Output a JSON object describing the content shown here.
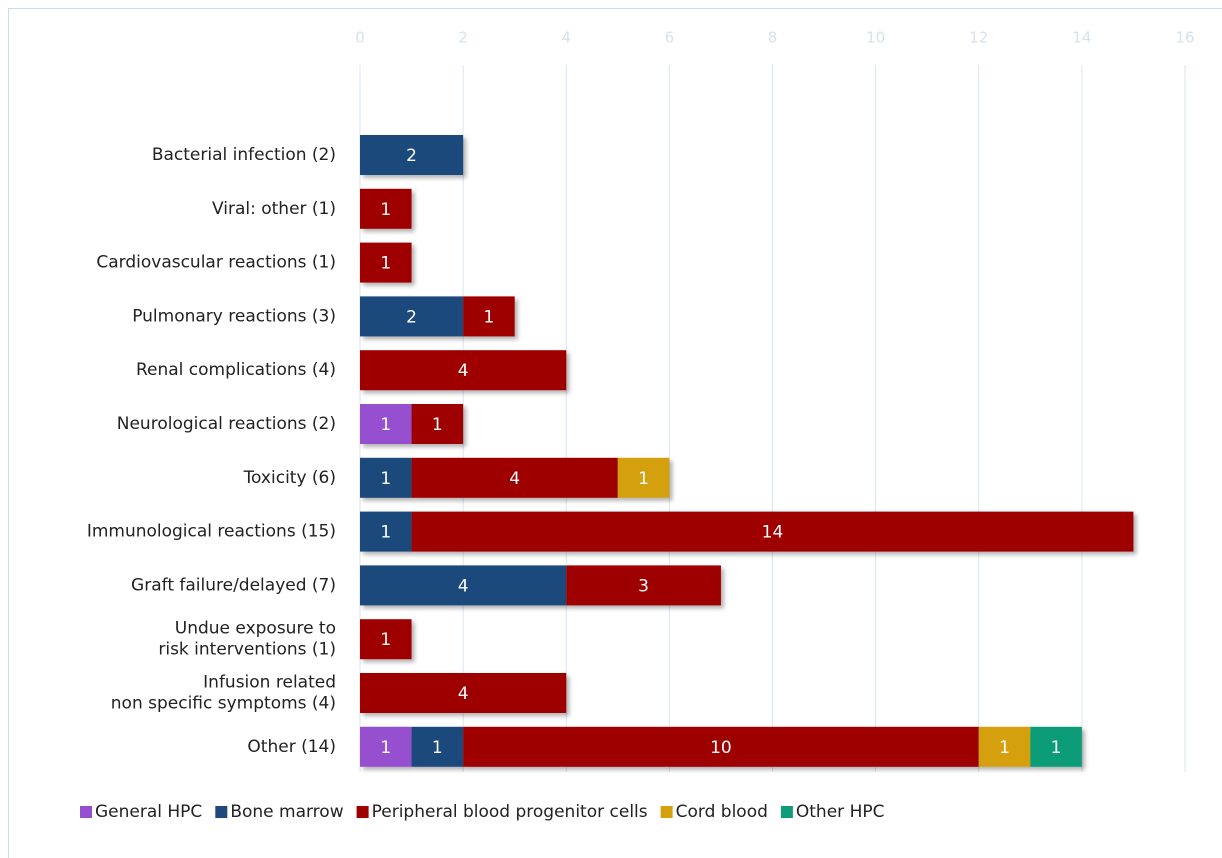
{
  "chart_data": {
    "type": "stacked_barh",
    "categories": [
      "Bacterial infection (2)",
      "Viral: other (1)",
      "Cardiovascular reactions (1)",
      "Pulmonary reactions (3)",
      "Renal complications (4)",
      "Neurological reactions (2)",
      "Toxicity (6)",
      "Immunological reactions (15)",
      "Graft failure/delayed (7)",
      "Undue exposure to\nrisk interventions (1)",
      "Infusion related\nnon specific symptoms (4)",
      "Other (14)"
    ],
    "series": [
      {
        "name": "General HPC",
        "color": "#9650cf",
        "values": [
          null,
          null,
          null,
          null,
          null,
          1,
          null,
          null,
          null,
          null,
          null,
          1
        ]
      },
      {
        "name": "Bone marrow",
        "color": "#1f487c",
        "values": [
          2,
          null,
          null,
          2,
          null,
          null,
          1,
          1,
          4,
          null,
          null,
          1
        ]
      },
      {
        "name": "Peripheral blood progenitor cells",
        "color": "#9e0000",
        "values": [
          null,
          1,
          1,
          1,
          4,
          1,
          4,
          14,
          3,
          1,
          4,
          10
        ]
      },
      {
        "name": "Cord blood",
        "color": "#d4a00e",
        "values": [
          null,
          null,
          null,
          null,
          null,
          null,
          1,
          null,
          null,
          null,
          null,
          1
        ]
      },
      {
        "name": "Other HPC",
        "color": "#0f9c78",
        "values": [
          null,
          null,
          null,
          null,
          null,
          null,
          null,
          null,
          null,
          null,
          null,
          1
        ]
      }
    ],
    "xlim": [
      0,
      16
    ],
    "xticks": [
      0,
      2,
      4,
      6,
      8,
      10,
      12,
      14,
      16
    ],
    "grid": true,
    "legend": "bottom"
  }
}
